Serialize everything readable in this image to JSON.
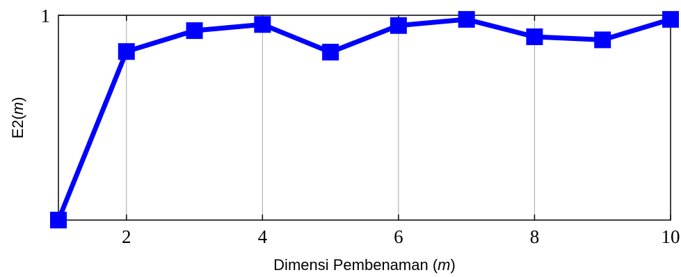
{
  "chart_data": {
    "type": "line",
    "title": "",
    "xlabel": {
      "prefix": "Dimensi Pembenaman (",
      "var": "m",
      "suffix": ")"
    },
    "ylabel": {
      "prefix": "E2(",
      "var": "m",
      "suffix": ")"
    },
    "xlim": [
      1,
      10
    ],
    "ylim": [
      0.0,
      1.0
    ],
    "x_ticks": [
      2,
      4,
      6,
      8,
      10
    ],
    "y_ticks": [
      1
    ],
    "grid": true,
    "legend": "none",
    "series": [
      {
        "color": "#0000ff",
        "marker": "square",
        "x": [
          1,
          2,
          3,
          4,
          5,
          6,
          7,
          8,
          9,
          10
        ],
        "y": [
          0.0,
          0.823,
          0.925,
          0.955,
          0.82,
          0.95,
          0.98,
          0.895,
          0.88,
          0.98
        ]
      }
    ]
  }
}
